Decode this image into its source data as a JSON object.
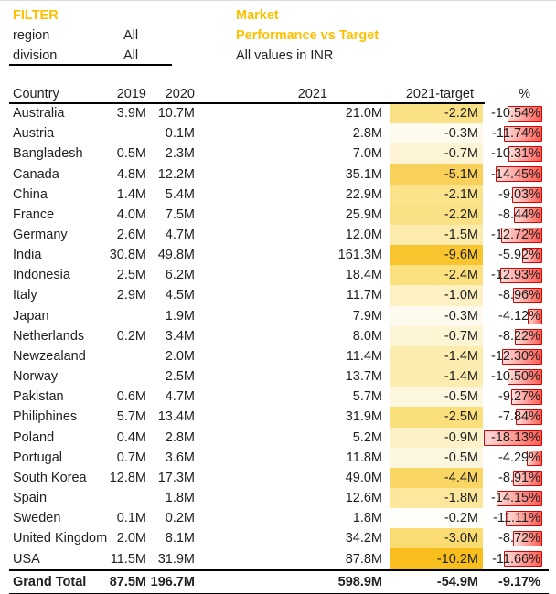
{
  "filter": {
    "label": "FILTER",
    "rows": [
      {
        "name": "region",
        "value": "All"
      },
      {
        "name": "division",
        "value": "All"
      }
    ]
  },
  "title": {
    "line1": "Market",
    "line2": "Performance vs Target",
    "subtitle": "All values in INR"
  },
  "colors": {
    "accent_gold": "#FFC000",
    "text": "#212121",
    "bar_border": "#E00000",
    "bar_fill_strong": "#FF463C",
    "bar_fill_light": "#FFBEB9",
    "rule_line": "#000000"
  },
  "table": {
    "headers": [
      "Country",
      "2019",
      "2020",
      "2021",
      "2021-target",
      "%"
    ],
    "rows": [
      {
        "country": "Australia",
        "y2019": "3.9M",
        "y2020": "10.7M",
        "y2021": "21.0M",
        "target": "-2.2M",
        "target_color": "#FBE186",
        "pct": "-10.54%",
        "pct_num": 10.54
      },
      {
        "country": "Austria",
        "y2019": "",
        "y2020": "0.1M",
        "y2021": "2.8M",
        "target": "-0.3M",
        "target_color": "#FEFBEE",
        "pct": "-11.74%",
        "pct_num": 11.74
      },
      {
        "country": "Bangladesh",
        "y2019": "0.5M",
        "y2020": "2.3M",
        "y2021": "7.0M",
        "target": "-0.7M",
        "target_color": "#FDF4D4",
        "pct": "-10.31%",
        "pct_num": 10.31
      },
      {
        "country": "Canada",
        "y2019": "4.8M",
        "y2020": "12.2M",
        "y2021": "35.1M",
        "target": "-5.1M",
        "target_color": "#F9D05A",
        "pct": "-14.45%",
        "pct_num": 14.45
      },
      {
        "country": "China",
        "y2019": "1.4M",
        "y2020": "5.4M",
        "y2021": "22.9M",
        "target": "-2.1M",
        "target_color": "#FBE38B",
        "pct": "-9.03%",
        "pct_num": 9.03
      },
      {
        "country": "France",
        "y2019": "4.0M",
        "y2020": "7.5M",
        "y2021": "25.9M",
        "target": "-2.2M",
        "target_color": "#FBE186",
        "pct": "-8.44%",
        "pct_num": 8.44
      },
      {
        "country": "Germany",
        "y2019": "2.6M",
        "y2020": "4.7M",
        "y2021": "12.0M",
        "target": "-1.5M",
        "target_color": "#FCEBAC",
        "pct": "-12.72%",
        "pct_num": 12.72
      },
      {
        "country": "India",
        "y2019": "30.8M",
        "y2020": "49.8M",
        "y2021": "161.3M",
        "target": "-9.6M",
        "target_color": "#F8C52E",
        "pct": "-5.92%",
        "pct_num": 5.92
      },
      {
        "country": "Indonesia",
        "y2019": "2.5M",
        "y2020": "6.2M",
        "y2021": "18.4M",
        "target": "-2.4M",
        "target_color": "#FBE07F",
        "pct": "-12.93%",
        "pct_num": 12.93
      },
      {
        "country": "Italy",
        "y2019": "2.9M",
        "y2020": "4.5M",
        "y2021": "11.7M",
        "target": "-1.0M",
        "target_color": "#FDF0C2",
        "pct": "-8.96%",
        "pct_num": 8.96
      },
      {
        "country": "Japan",
        "y2019": "",
        "y2020": "1.9M",
        "y2021": "7.9M",
        "target": "-0.3M",
        "target_color": "#FEFBEE",
        "pct": "-4.12%",
        "pct_num": 4.12
      },
      {
        "country": "Netherlands",
        "y2019": "0.2M",
        "y2020": "3.4M",
        "y2021": "8.0M",
        "target": "-0.7M",
        "target_color": "#FDF4D4",
        "pct": "-8.22%",
        "pct_num": 8.22
      },
      {
        "country": "Newzealand",
        "y2019": "",
        "y2020": "2.0M",
        "y2021": "11.4M",
        "target": "-1.4M",
        "target_color": "#FCECB0",
        "pct": "-12.30%",
        "pct_num": 12.3
      },
      {
        "country": "Norway",
        "y2019": "",
        "y2020": "2.5M",
        "y2021": "13.7M",
        "target": "-1.4M",
        "target_color": "#FCECB0",
        "pct": "-10.50%",
        "pct_num": 10.5
      },
      {
        "country": "Pakistan",
        "y2019": "0.6M",
        "y2020": "4.7M",
        "y2021": "5.7M",
        "target": "-0.5M",
        "target_color": "#FEF7DF",
        "pct": "-9.27%",
        "pct_num": 9.27
      },
      {
        "country": "Philiphines",
        "y2019": "5.7M",
        "y2020": "13.4M",
        "y2021": "31.9M",
        "target": "-2.5M",
        "target_color": "#FBDF7B",
        "pct": "-7.84%",
        "pct_num": 7.84
      },
      {
        "country": "Poland",
        "y2019": "0.4M",
        "y2020": "2.8M",
        "y2021": "5.2M",
        "target": "-0.9M",
        "target_color": "#FDF1C8",
        "pct": "-18.13%",
        "pct_num": 18.13
      },
      {
        "country": "Portugal",
        "y2019": "0.7M",
        "y2020": "3.6M",
        "y2021": "11.8M",
        "target": "-0.5M",
        "target_color": "#FEF7DF",
        "pct": "-4.29%",
        "pct_num": 4.29
      },
      {
        "country": "South Korea",
        "y2019": "12.8M",
        "y2020": "17.3M",
        "y2021": "49.0M",
        "target": "-4.4M",
        "target_color": "#FAD765",
        "pct": "-8.91%",
        "pct_num": 8.91
      },
      {
        "country": "Spain",
        "y2019": "",
        "y2020": "1.8M",
        "y2021": "12.6M",
        "target": "-1.8M",
        "target_color": "#FCE79C",
        "pct": "-14.15%",
        "pct_num": 14.15
      },
      {
        "country": "Sweden",
        "y2019": "0.1M",
        "y2020": "0.2M",
        "y2021": "1.8M",
        "target": "-0.2M",
        "target_color": "#FFFEF9",
        "pct": "-11.11%",
        "pct_num": 11.11
      },
      {
        "country": "United Kingdom",
        "y2019": "2.0M",
        "y2020": "8.1M",
        "y2021": "34.2M",
        "target": "-3.0M",
        "target_color": "#FBDC72",
        "pct": "-8.72%",
        "pct_num": 8.72
      },
      {
        "country": "USA",
        "y2019": "11.5M",
        "y2020": "31.9M",
        "y2021": "87.8M",
        "target": "-10.2M",
        "target_color": "#F7BE1E",
        "pct": "-11.66%",
        "pct_num": 11.66
      }
    ],
    "grand_total": {
      "country": "Grand Total",
      "y2019": "87.5M",
      "y2020": "196.7M",
      "y2021": "598.9M",
      "target": "-54.9M",
      "pct": "-9.17%"
    }
  }
}
